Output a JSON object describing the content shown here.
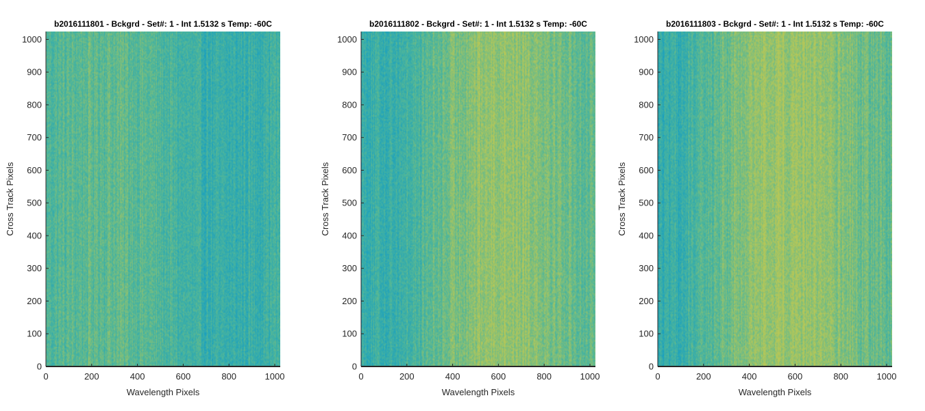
{
  "figure": {
    "panel_count": 3,
    "colormap": "parula",
    "colors": {
      "low": "#129dc5",
      "mid": "#4fb69a",
      "high": "#b5c758",
      "axis": "#262626"
    }
  },
  "chart_data": [
    {
      "type": "heatmap",
      "title": "b2016111801 - Bckgrd - Set#: 1 - Int 1.5132 s Temp: -60C",
      "xlabel": "Wavelength Pixels",
      "ylabel": "Cross Track Pixels",
      "xlim": [
        0,
        1024
      ],
      "ylim": [
        0,
        1024
      ],
      "xticks": [
        0,
        200,
        400,
        600,
        800,
        1000
      ],
      "yticks": [
        0,
        100,
        200,
        300,
        400,
        500,
        600,
        700,
        800,
        900,
        1000
      ],
      "warm_band_center": 300,
      "warm_band_width": 260,
      "warm_band_strength": 0.15,
      "cool_band_center": 760,
      "cool_band_width": 240,
      "cool_band_strength": 0.15
    },
    {
      "type": "heatmap",
      "title": "b2016111802 - Bckgrd - Set#: 1 - Int 1.5132 s Temp: -60C",
      "xlabel": "Wavelength Pixels",
      "ylabel": "Cross Track Pixels",
      "xlim": [
        0,
        1024
      ],
      "ylim": [
        0,
        1024
      ],
      "xticks": [
        0,
        200,
        400,
        600,
        800,
        1000
      ],
      "yticks": [
        0,
        100,
        200,
        300,
        400,
        500,
        600,
        700,
        800,
        900,
        1000
      ],
      "warm_band_center": 620,
      "warm_band_width": 330,
      "warm_band_strength": 0.42,
      "cool_band_center": 120,
      "cool_band_width": 220,
      "cool_band_strength": 0.15
    },
    {
      "type": "heatmap",
      "title": "b2016111803 - Bckgrd - Set#: 1 - Int 1.5132 s Temp: -60C",
      "xlabel": "Wavelength Pixels",
      "ylabel": "Cross Track Pixels",
      "xlim": [
        0,
        1024
      ],
      "ylim": [
        0,
        1024
      ],
      "xticks": [
        0,
        200,
        400,
        600,
        800,
        1000
      ],
      "yticks": [
        0,
        100,
        200,
        300,
        400,
        500,
        600,
        700,
        800,
        900,
        1000
      ],
      "warm_band_center": 580,
      "warm_band_width": 380,
      "warm_band_strength": 0.45,
      "cool_band_center": 60,
      "cool_band_width": 200,
      "cool_band_strength": 0.22
    }
  ]
}
